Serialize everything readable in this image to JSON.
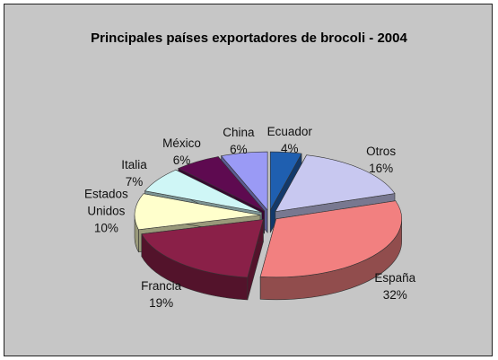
{
  "chart_data": {
    "type": "pie",
    "title": "Principales países exportadores de brocoli - 2004",
    "categories": [
      "Ecuador",
      "Otros",
      "España",
      "Francia",
      "Estados Unidos",
      "Italia",
      "México",
      "China"
    ],
    "values": [
      4,
      16,
      32,
      19,
      10,
      7,
      6,
      6
    ],
    "value_labels": [
      "4%",
      "16%",
      "32%",
      "19%",
      "10%",
      "7%",
      "6%",
      "6%"
    ],
    "colors": [
      "#1f5fb0",
      "#c8c8f0",
      "#f28080",
      "#8a2048",
      "#ffffcc",
      "#cff6f6",
      "#5e0a50",
      "#9a9af5"
    ]
  }
}
